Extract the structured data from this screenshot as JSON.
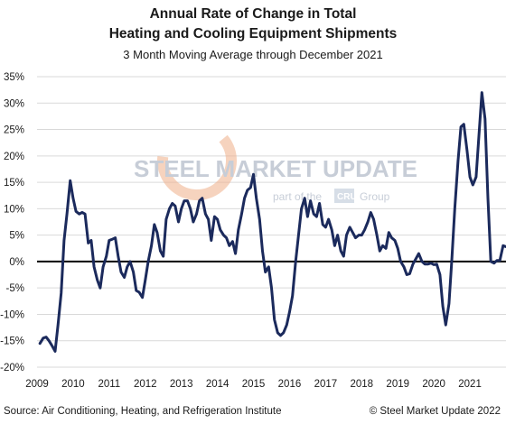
{
  "chart_data": {
    "type": "line",
    "title_line1": "Annual Rate of Change in Total",
    "title_line2": "Heating and Cooling Equipment Shipments",
    "subtitle": "3 Month Moving Average through December 2021",
    "xlabel": "",
    "ylabel": "",
    "ylim": [
      -20,
      35
    ],
    "xlim": [
      2009,
      2022
    ],
    "y_ticks": [
      -20,
      -15,
      -10,
      -5,
      0,
      5,
      10,
      15,
      20,
      25,
      30,
      35
    ],
    "y_tick_labels": [
      "-20%",
      "-15%",
      "-10%",
      "-5%",
      "0%",
      "5%",
      "10%",
      "15%",
      "20%",
      "25%",
      "30%",
      "35%"
    ],
    "x_tick_labels": [
      "2009",
      "2010",
      "2011",
      "2012",
      "2013",
      "2014",
      "2015",
      "2016",
      "2017",
      "2018",
      "2019",
      "2020",
      "2021"
    ],
    "grid": "horizontal",
    "line_color": "#1b2a5c",
    "zero_line_color": "#000000",
    "series": [
      {
        "points": [
          [
            2009.08,
            -15.5
          ],
          [
            2009.17,
            -14.5
          ],
          [
            2009.25,
            -14.3
          ],
          [
            2009.33,
            -15.0
          ],
          [
            2009.42,
            -16.0
          ],
          [
            2009.5,
            -17.0
          ],
          [
            2009.58,
            -12.0
          ],
          [
            2009.67,
            -6.0
          ],
          [
            2009.75,
            4.0
          ],
          [
            2009.83,
            9.0
          ],
          [
            2009.92,
            15.3
          ],
          [
            2010.0,
            12.0
          ],
          [
            2010.08,
            9.5
          ],
          [
            2010.17,
            9.0
          ],
          [
            2010.25,
            9.3
          ],
          [
            2010.33,
            9.0
          ],
          [
            2010.42,
            3.5
          ],
          [
            2010.5,
            4.0
          ],
          [
            2010.58,
            -1.0
          ],
          [
            2010.67,
            -3.5
          ],
          [
            2010.75,
            -5.0
          ],
          [
            2010.83,
            -1.0
          ],
          [
            2010.92,
            1.0
          ],
          [
            2011.0,
            4.0
          ],
          [
            2011.08,
            4.2
          ],
          [
            2011.17,
            4.5
          ],
          [
            2011.25,
            1.0
          ],
          [
            2011.33,
            -2.0
          ],
          [
            2011.42,
            -3.0
          ],
          [
            2011.5,
            -1.0
          ],
          [
            2011.58,
            0.0
          ],
          [
            2011.67,
            -2.0
          ],
          [
            2011.75,
            -5.5
          ],
          [
            2011.83,
            -5.8
          ],
          [
            2011.92,
            -6.8
          ],
          [
            2012.0,
            -3.5
          ],
          [
            2012.08,
            0.0
          ],
          [
            2012.17,
            3.0
          ],
          [
            2012.25,
            7.0
          ],
          [
            2012.33,
            5.5
          ],
          [
            2012.42,
            2.0
          ],
          [
            2012.5,
            1.0
          ],
          [
            2012.58,
            8.0
          ],
          [
            2012.67,
            10.0
          ],
          [
            2012.75,
            11.0
          ],
          [
            2012.83,
            10.5
          ],
          [
            2012.92,
            7.5
          ],
          [
            2013.0,
            10.0
          ],
          [
            2013.08,
            11.5
          ],
          [
            2013.17,
            11.5
          ],
          [
            2013.25,
            10.0
          ],
          [
            2013.33,
            7.5
          ],
          [
            2013.42,
            9.0
          ],
          [
            2013.5,
            11.5
          ],
          [
            2013.58,
            12.0
          ],
          [
            2013.67,
            9.0
          ],
          [
            2013.75,
            8.0
          ],
          [
            2013.83,
            4.0
          ],
          [
            2013.92,
            8.5
          ],
          [
            2014.0,
            8.0
          ],
          [
            2014.08,
            6.0
          ],
          [
            2014.17,
            5.0
          ],
          [
            2014.25,
            4.5
          ],
          [
            2014.33,
            3.0
          ],
          [
            2014.42,
            3.8
          ],
          [
            2014.5,
            1.5
          ],
          [
            2014.58,
            6.0
          ],
          [
            2014.67,
            9.0
          ],
          [
            2014.75,
            12.0
          ],
          [
            2014.83,
            13.5
          ],
          [
            2014.92,
            14.0
          ],
          [
            2015.0,
            16.5
          ],
          [
            2015.08,
            12.0
          ],
          [
            2015.17,
            8.0
          ],
          [
            2015.25,
            2.0
          ],
          [
            2015.33,
            -2.0
          ],
          [
            2015.42,
            -1.0
          ],
          [
            2015.5,
            -5.0
          ],
          [
            2015.58,
            -11.0
          ],
          [
            2015.67,
            -13.5
          ],
          [
            2015.75,
            -14.0
          ],
          [
            2015.83,
            -13.5
          ],
          [
            2015.92,
            -12.0
          ],
          [
            2016.0,
            -9.5
          ],
          [
            2016.08,
            -6.5
          ],
          [
            2016.17,
            0.0
          ],
          [
            2016.25,
            5.0
          ],
          [
            2016.33,
            10.0
          ],
          [
            2016.42,
            12.0
          ],
          [
            2016.5,
            8.5
          ],
          [
            2016.58,
            11.5
          ],
          [
            2016.67,
            9.0
          ],
          [
            2016.75,
            8.5
          ],
          [
            2016.83,
            11.0
          ],
          [
            2016.92,
            7.0
          ],
          [
            2017.0,
            6.5
          ],
          [
            2017.08,
            8.0
          ],
          [
            2017.17,
            6.0
          ],
          [
            2017.25,
            3.0
          ],
          [
            2017.33,
            5.0
          ],
          [
            2017.42,
            2.0
          ],
          [
            2017.5,
            1.0
          ],
          [
            2017.58,
            5.0
          ],
          [
            2017.67,
            6.5
          ],
          [
            2017.75,
            5.5
          ],
          [
            2017.83,
            4.5
          ],
          [
            2017.92,
            5.0
          ],
          [
            2018.0,
            5.0
          ],
          [
            2018.08,
            6.0
          ],
          [
            2018.17,
            7.5
          ],
          [
            2018.25,
            9.3
          ],
          [
            2018.33,
            8.0
          ],
          [
            2018.42,
            5.0
          ],
          [
            2018.5,
            2.0
          ],
          [
            2018.58,
            3.0
          ],
          [
            2018.67,
            2.5
          ],
          [
            2018.75,
            5.5
          ],
          [
            2018.83,
            4.5
          ],
          [
            2018.92,
            4.0
          ],
          [
            2019.0,
            2.5
          ],
          [
            2019.08,
            0.0
          ],
          [
            2019.17,
            -1.0
          ],
          [
            2019.25,
            -2.5
          ],
          [
            2019.33,
            -2.3
          ],
          [
            2019.42,
            -0.5
          ],
          [
            2019.5,
            0.5
          ],
          [
            2019.58,
            1.5
          ],
          [
            2019.67,
            0.0
          ],
          [
            2019.75,
            -0.5
          ],
          [
            2019.83,
            -0.5
          ],
          [
            2019.92,
            -0.3
          ],
          [
            2020.0,
            -0.6
          ],
          [
            2020.08,
            -0.5
          ],
          [
            2020.17,
            -2.5
          ],
          [
            2020.25,
            -8.5
          ],
          [
            2020.33,
            -12.0
          ],
          [
            2020.42,
            -8.0
          ],
          [
            2020.5,
            0.5
          ],
          [
            2020.58,
            10.0
          ],
          [
            2020.67,
            19.0
          ],
          [
            2020.75,
            25.5
          ],
          [
            2020.83,
            26.0
          ],
          [
            2020.92,
            21.0
          ],
          [
            2021.0,
            16.0
          ],
          [
            2021.08,
            14.5
          ],
          [
            2021.17,
            16.0
          ],
          [
            2021.25,
            24.0
          ],
          [
            2021.33,
            32.0
          ],
          [
            2021.42,
            27.0
          ],
          [
            2021.5,
            12.0
          ],
          [
            2021.58,
            0.0
          ],
          [
            2021.67,
            -0.3
          ],
          [
            2021.75,
            0.2
          ],
          [
            2021.83,
            0.2
          ],
          [
            2021.92,
            3.0
          ],
          [
            2022.0,
            2.8
          ]
        ]
      }
    ]
  },
  "watermark": {
    "brand": "STEEL MARKET UPDATE",
    "tagline_prefix": "part of the",
    "badge": "CRU",
    "tagline_suffix": "Group"
  },
  "footer": {
    "source": "Source: Air Conditioning, Heating, and Refrigeration Institute",
    "copyright": "© Steel Market Update 2022"
  }
}
